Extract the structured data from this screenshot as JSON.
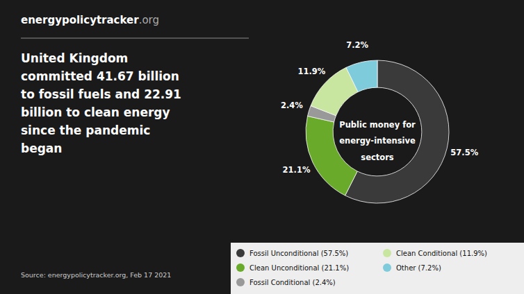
{
  "chart_data": {
    "type": "donut",
    "header": [
      "energypolicytracker",
      ".org"
    ],
    "body_lines": [
      "United Kingdom",
      "committed 41.67 billion",
      "to fossil fuels and 22.91",
      "billion to clean energy",
      "since the pandemic",
      "began"
    ],
    "source": "Source: energypolicytracker.org, Feb 17 2021",
    "center_text": [
      "Public money for",
      "energy-intensive",
      "sectors"
    ],
    "categories": [
      "Fossil Unconditional (57.5%)",
      "Clean Unconditional (21.1%)",
      "Fossil Conditional (2.4%)",
      "Clean Conditional (11.9%)",
      "Other (7.2%)"
    ],
    "values": [
      57.5,
      21.1,
      2.4,
      11.9,
      7.2
    ],
    "value_labels": [
      "57.5%",
      "21.1%",
      "2.4%",
      "11.9%",
      "7.2%"
    ],
    "colors": [
      "#3a3a3a",
      "#6aaa2a",
      "#999999",
      "#c8e6a0",
      "#7ecbdb"
    ],
    "data_labels": true,
    "legend": "bottom"
  }
}
